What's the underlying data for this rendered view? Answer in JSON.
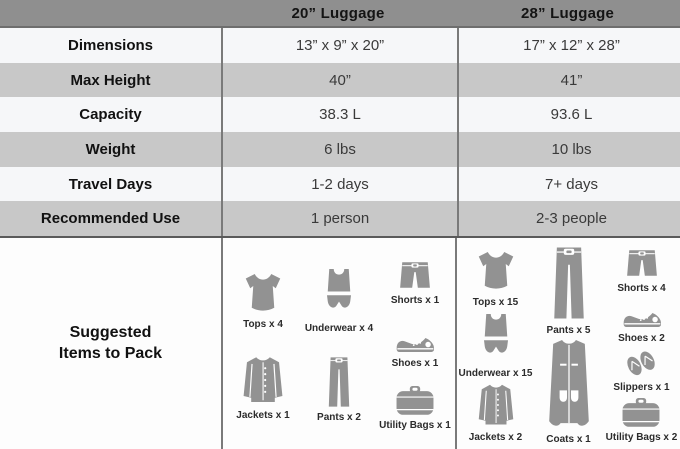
{
  "table": {
    "header": {
      "col20": "20” Luggage",
      "col28": "28” Luggage"
    },
    "rows": [
      {
        "label": "Dimensions",
        "col20": "13” x 9” x 20”",
        "col28": "17” x 12” x 28”"
      },
      {
        "label": "Max Height",
        "col20": "40”",
        "col28": "41”"
      },
      {
        "label": "Capacity",
        "col20": "38.3 L",
        "col28": "93.6 L"
      },
      {
        "label": "Weight",
        "col20": "6 lbs",
        "col28": "10 lbs"
      },
      {
        "label": "Travel Days",
        "col20": "1-2 days",
        "col28": "7+ days"
      },
      {
        "label": "Recommended Use",
        "col20": "1 person",
        "col28": "2-3 people"
      }
    ]
  },
  "suggested": {
    "label_line1": "Suggested",
    "label_line2": "Items to Pack",
    "col20": {
      "columns": [
        [
          {
            "icon": "top",
            "label": "Tops x 4",
            "size": "md"
          },
          {
            "icon": "jacket",
            "label": "Jackets x 1",
            "size": "lg"
          }
        ],
        [
          {
            "icon": "underwear",
            "label": "Underwear x 4",
            "size": "lg"
          },
          {
            "icon": "pants",
            "label": "Pants x 2",
            "size": "lg"
          }
        ],
        [
          {
            "icon": "shorts",
            "label": "Shorts x 1",
            "size": "sm"
          },
          {
            "icon": "shoe",
            "label": "Shoes x 1",
            "size": "sm"
          },
          {
            "icon": "utility-bag",
            "label": "Utility Bags x 1",
            "size": "sm"
          }
        ]
      ]
    },
    "col28": {
      "columns": [
        [
          {
            "icon": "top",
            "label": "Tops x 15",
            "size": "md"
          },
          {
            "icon": "underwear",
            "label": "Underwear x 15",
            "size": "lg"
          },
          {
            "icon": "jacket",
            "label": "Jackets x 2",
            "size": "md"
          }
        ],
        [
          {
            "icon": "pants",
            "label": "Pants x 5",
            "size": "tall"
          },
          {
            "icon": "coat",
            "label": "Coats x 1",
            "size": "xl"
          }
        ],
        [
          {
            "icon": "shorts",
            "label": "Shorts x 4",
            "size": "sm"
          },
          {
            "icon": "shoe",
            "label": "Shoes x 2",
            "size": "sm"
          },
          {
            "icon": "slippers",
            "label": "Slippers x 1",
            "size": "sm"
          },
          {
            "icon": "utility-bag",
            "label": "Utility Bags x 2",
            "size": "sm"
          }
        ]
      ]
    }
  },
  "colors": {
    "header_bg": "#8f8f8f",
    "row_gray": "#c8c8c8",
    "row_light": "#f6f7f9",
    "divider": "#7a7a7a",
    "icon_gray": "#929292",
    "text_dark": "#111111"
  }
}
